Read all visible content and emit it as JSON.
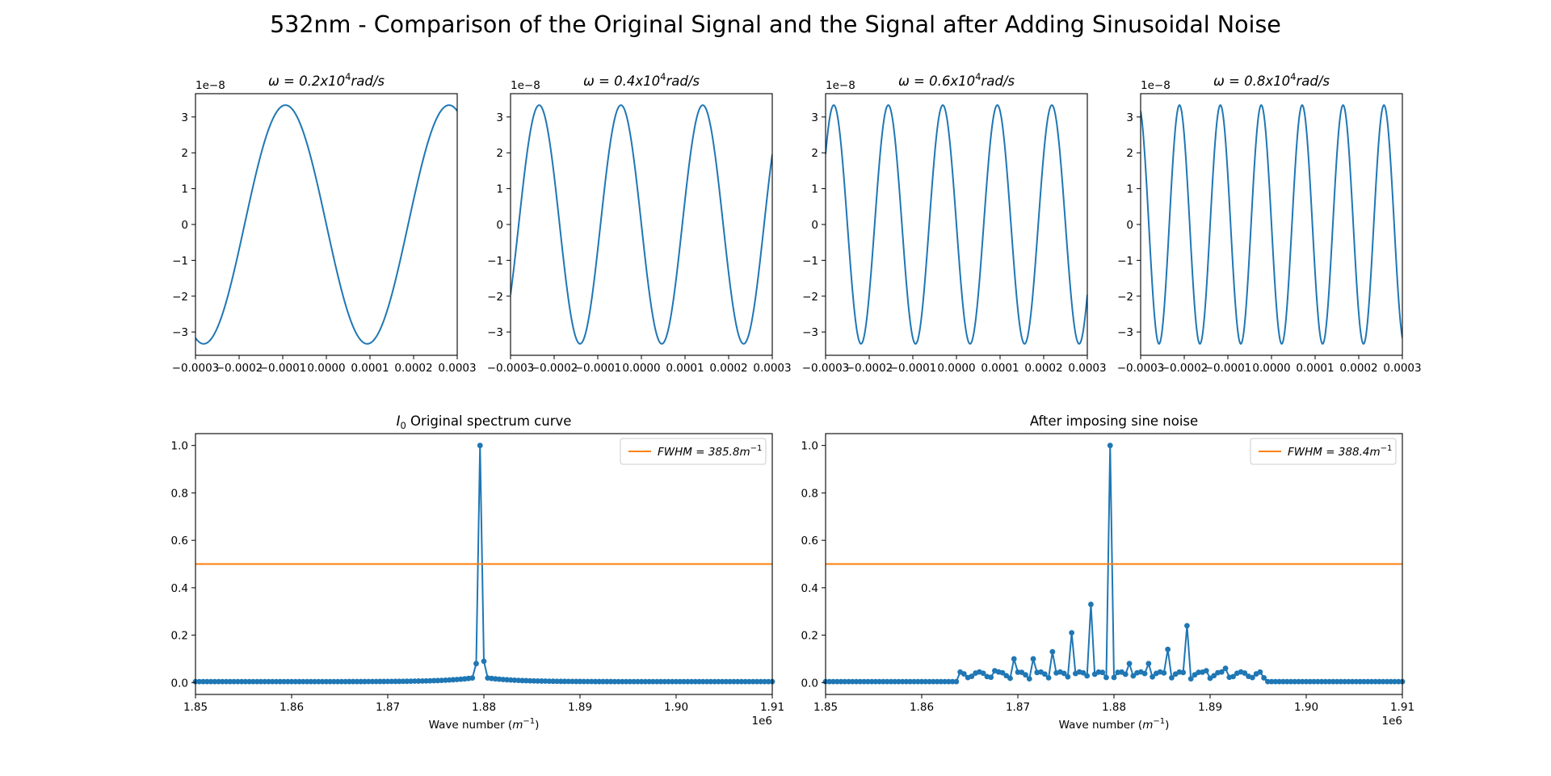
{
  "figure": {
    "title": "532nm - Comparison of the Original Signal and the Signal after Adding Sinusoidal Noise"
  },
  "colors": {
    "series": "#1f77b4",
    "fwhm": "#ff7f0e",
    "axes": "#000000",
    "background": "#ffffff"
  },
  "chart_data": [
    {
      "type": "line",
      "title_prefix": "ω = 0.2x10",
      "title_sup": "4",
      "title_suffix": "rad/s",
      "omega": 0.2,
      "amplitude": 3.33,
      "signal": "-sin",
      "offset_label": "1e−8",
      "xlim": [
        -0.0003,
        0.0003
      ],
      "ylim": [
        -3.65,
        3.65
      ],
      "xticks": [
        "−0.0003",
        "−0.0002",
        "−0.0001",
        "0.0000",
        "0.0001",
        "0.0002",
        "0.0003"
      ],
      "yticks": [
        "3",
        "2",
        "1",
        "0",
        "−1",
        "−2",
        "−3"
      ]
    },
    {
      "type": "line",
      "title_prefix": "ω = 0.4x10",
      "title_sup": "4",
      "title_suffix": "rad/s",
      "omega": 0.4,
      "amplitude": 3.33,
      "signal": "-sin",
      "offset_label": "1e−8",
      "xlim": [
        -0.0003,
        0.0003
      ],
      "ylim": [
        -3.65,
        3.65
      ],
      "xticks": [
        "−0.0003",
        "−0.0002",
        "−0.0001",
        "0.0000",
        "0.0001",
        "0.0002",
        "0.0003"
      ],
      "yticks": [
        "3",
        "2",
        "1",
        "0",
        "−1",
        "−2",
        "−3"
      ]
    },
    {
      "type": "line",
      "title_prefix": "ω = 0.6x10",
      "title_sup": "4",
      "title_suffix": "rad/s",
      "omega": 0.6,
      "amplitude": 3.33,
      "signal": "-sin",
      "offset_label": "1e−8",
      "xlim": [
        -0.0003,
        0.0003
      ],
      "ylim": [
        -3.65,
        3.65
      ],
      "xticks": [
        "−0.0003",
        "−0.0002",
        "−0.0001",
        "0.0000",
        "0.0001",
        "0.0002",
        "0.0003"
      ],
      "yticks": [
        "3",
        "2",
        "1",
        "0",
        "−1",
        "−2",
        "−3"
      ]
    },
    {
      "type": "line",
      "title_prefix": "ω = 0.8x10",
      "title_sup": "4",
      "title_suffix": "rad/s",
      "omega": 0.8,
      "amplitude": 3.33,
      "signal": "-sin",
      "offset_label": "1e−8",
      "xlim": [
        -0.0003,
        0.0003
      ],
      "ylim": [
        -3.65,
        3.65
      ],
      "xticks": [
        "−0.0003",
        "−0.0002",
        "−0.0001",
        "0.0000",
        "0.0001",
        "0.0002",
        "0.0003"
      ],
      "yticks": [
        "3",
        "2",
        "1",
        "0",
        "−1",
        "−2",
        "−3"
      ]
    },
    {
      "type": "line",
      "title_italic": "I",
      "title_sub": "0",
      "title_rest": " Original spectrum curve",
      "xlabel_main": "Wave number (",
      "xlabel_m": "m",
      "xlabel_sup": "−1",
      "xlabel_close": ")",
      "offset_label": "1e6",
      "xlim": [
        1.85,
        1.91
      ],
      "ylim": [
        -0.05,
        1.05
      ],
      "xticks": [
        "1.85",
        "1.86",
        "1.87",
        "1.88",
        "1.89",
        "1.90",
        "1.91"
      ],
      "yticks": [
        "0.0",
        "0.2",
        "0.4",
        "0.6",
        "0.8",
        "1.0"
      ],
      "fwhm_y": 0.5,
      "legend_label": "FWHM = 385.8m",
      "legend_sup": "−1",
      "legend": "top-right",
      "peaks": [
        {
          "x": 1.8796,
          "y": 1.0
        }
      ]
    },
    {
      "type": "line",
      "title": "After imposing sine noise",
      "xlabel_main": "Wave number (",
      "xlabel_m": "m",
      "xlabel_sup": "−1",
      "xlabel_close": ")",
      "offset_label": "1e6",
      "xlim": [
        1.85,
        1.91
      ],
      "ylim": [
        -0.05,
        1.05
      ],
      "xticks": [
        "1.85",
        "1.86",
        "1.87",
        "1.88",
        "1.89",
        "1.90",
        "1.91"
      ],
      "yticks": [
        "0.0",
        "0.2",
        "0.4",
        "0.6",
        "0.8",
        "1.0"
      ],
      "fwhm_y": 0.5,
      "legend_label": "FWHM = 388.4m",
      "legend_sup": "−1",
      "legend": "top-right",
      "peaks": [
        {
          "x": 1.8656,
          "y": 0.03
        },
        {
          "x": 1.8676,
          "y": 0.05
        },
        {
          "x": 1.8696,
          "y": 0.1
        },
        {
          "x": 1.8716,
          "y": 0.1
        },
        {
          "x": 1.8736,
          "y": 0.13
        },
        {
          "x": 1.8756,
          "y": 0.21
        },
        {
          "x": 1.8776,
          "y": 0.33
        },
        {
          "x": 1.8796,
          "y": 1.0
        },
        {
          "x": 1.8816,
          "y": 0.08
        },
        {
          "x": 1.8836,
          "y": 0.08
        },
        {
          "x": 1.8856,
          "y": 0.14
        },
        {
          "x": 1.8876,
          "y": 0.24
        },
        {
          "x": 1.8896,
          "y": 0.05
        },
        {
          "x": 1.8916,
          "y": 0.06
        },
        {
          "x": 1.8936,
          "y": 0.03
        },
        {
          "x": 1.8956,
          "y": 0.02
        }
      ]
    }
  ]
}
